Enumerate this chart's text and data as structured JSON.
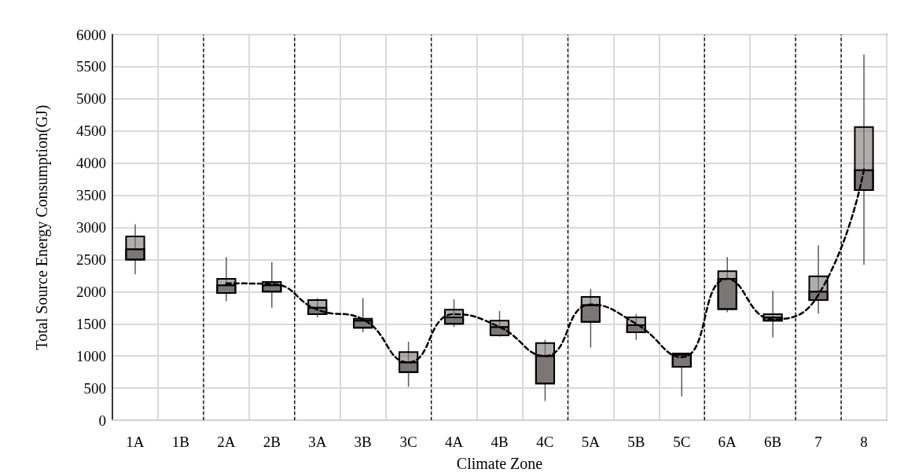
{
  "chart_data": {
    "type": "box",
    "xlabel": "Climate Zone",
    "ylabel": "Total Source Energy Consumption(GJ)",
    "categories": [
      "1A",
      "1B",
      "2A",
      "2B",
      "3A",
      "3B",
      "3C",
      "4A",
      "4B",
      "4C",
      "5A",
      "5B",
      "5C",
      "6A",
      "6B",
      "7",
      "8"
    ],
    "ylim": [
      0,
      6000
    ],
    "yticks": [
      0,
      500,
      1000,
      1500,
      2000,
      2500,
      3000,
      3500,
      4000,
      4500,
      5000,
      5500,
      6000
    ],
    "grid": true,
    "series": [
      {
        "color": "#7b7777",
        "boxes": [
          {
            "low": 2270,
            "q1": 2500,
            "median": 2660,
            "q3": 2860,
            "high": 3050
          },
          null,
          {
            "low": 1850,
            "q1": 1980,
            "median": 2100,
            "q3": 2200,
            "high": 2540
          },
          {
            "low": 1750,
            "q1": 2000,
            "median": 2100,
            "q3": 2150,
            "high": 2460
          },
          {
            "low": 1600,
            "q1": 1650,
            "median": 1750,
            "q3": 1870,
            "high": 1900
          },
          {
            "low": 1370,
            "q1": 1440,
            "median": 1550,
            "q3": 1580,
            "high": 1900
          },
          {
            "low": 520,
            "q1": 750,
            "median": 900,
            "q3": 1060,
            "high": 1220
          },
          {
            "low": 1450,
            "q1": 1500,
            "median": 1600,
            "q3": 1720,
            "high": 1880
          },
          {
            "low": 1300,
            "q1": 1320,
            "median": 1450,
            "q3": 1550,
            "high": 1700
          },
          {
            "low": 300,
            "q1": 570,
            "median": 1000,
            "q3": 1200,
            "high": 1250
          },
          {
            "low": 1130,
            "q1": 1530,
            "median": 1790,
            "q3": 1920,
            "high": 2040
          },
          {
            "low": 1250,
            "q1": 1370,
            "median": 1480,
            "q3": 1600,
            "high": 1650
          },
          {
            "low": 370,
            "q1": 830,
            "median": 1020,
            "q3": 1040,
            "high": 1040
          },
          {
            "low": 1680,
            "q1": 1730,
            "median": 2200,
            "q3": 2320,
            "high": 2540
          },
          {
            "low": 1290,
            "q1": 1550,
            "median": 1600,
            "q3": 1650,
            "high": 2010
          },
          {
            "low": 1660,
            "q1": 1870,
            "median": 2000,
            "q3": 2240,
            "high": 2720
          },
          {
            "low": 2420,
            "q1": 3580,
            "median": 3890,
            "q3": 4560,
            "high": 5690
          }
        ]
      },
      {
        "type": "line",
        "color": "#000000",
        "line_style": "dashed",
        "marker": "none",
        "values": [
          null,
          null,
          2130,
          2120,
          1720,
          1570,
          900,
          1650,
          1450,
          1000,
          1800,
          1500,
          980,
          2200,
          1570,
          1950,
          3900
        ]
      }
    ]
  }
}
